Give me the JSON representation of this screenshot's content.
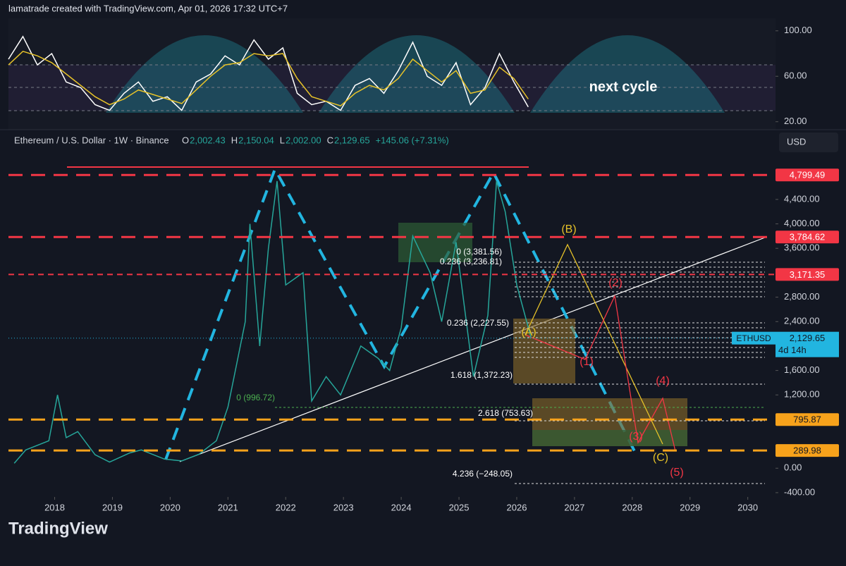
{
  "header": {
    "credit": "lamatrade created with TradingView.com, Apr 01, 2026 17:32 UTC+7",
    "brand": "TradingView"
  },
  "chart_data": [
    {
      "type": "line",
      "title": "Ethereum / U.S. Dollar · 1W · Binance",
      "ohlc": [
        {
          "label": "O",
          "value": "2,002.43"
        },
        {
          "label": "H",
          "value": "2,150.04"
        },
        {
          "label": "L",
          "value": "2,002.00"
        },
        {
          "label": "C",
          "value": "2,129.65"
        }
      ],
      "change": "+145.06 (+7.31%)",
      "currency": "USD",
      "x": [
        2017.3,
        2017.5,
        2017.9,
        2018.05,
        2018.2,
        2018.4,
        2018.7,
        2018.95,
        2019.3,
        2019.5,
        2019.9,
        2020.2,
        2020.5,
        2020.8,
        2021.0,
        2021.3,
        2021.38,
        2021.55,
        2021.7,
        2021.85,
        2022.0,
        2022.3,
        2022.45,
        2022.7,
        2022.95,
        2023.3,
        2023.6,
        2023.8,
        2024.0,
        2024.2,
        2024.5,
        2024.7,
        2024.95,
        2025.25,
        2025.5,
        2025.65,
        2025.8,
        2026.0,
        2026.25
      ],
      "series": [
        {
          "color": "#26a69a",
          "values": [
            80,
            300,
            450,
            1200,
            500,
            600,
            220,
            100,
            250,
            300,
            150,
            120,
            230,
            450,
            1000,
            2400,
            4000,
            2000,
            3600,
            4700,
            3000,
            3200,
            1100,
            1500,
            1200,
            2000,
            1800,
            1600,
            2300,
            3800,
            3200,
            2400,
            3700,
            1500,
            2500,
            4700,
            4200,
            3000,
            2129.65
          ]
        }
      ],
      "xlim": [
        2017.2,
        2030.48
      ],
      "xticks": [
        2018,
        2019,
        2020,
        2021,
        2022,
        2023,
        2024,
        2025,
        2026,
        2027,
        2028,
        2029,
        2030
      ],
      "ylim": [
        -470,
        5530
      ],
      "yticks": [
        {
          "value": 4400,
          "label": "4,400.00"
        },
        {
          "value": 4000,
          "label": "4,000.00"
        },
        {
          "value": 3600,
          "label": "3,600.00"
        },
        {
          "value": 2800,
          "label": "2,800.00"
        },
        {
          "value": 2400,
          "label": "2,400.00"
        },
        {
          "value": 1600,
          "label": "1,600.00"
        },
        {
          "value": 1200,
          "label": "1,200.00"
        },
        {
          "value": 0,
          "label": "0.00"
        },
        {
          "value": -400,
          "label": "-400.00"
        }
      ],
      "levels": [
        {
          "value": 4799.49,
          "label": "4,799.49",
          "color": "#f23645"
        },
        {
          "value": 3784.62,
          "label": "3,784.62",
          "color": "#f23645"
        },
        {
          "value": 3171.35,
          "label": "3,171.35",
          "color": "#f23645"
        },
        {
          "value": 795.87,
          "label": "795.87",
          "color": "#f7a21b"
        },
        {
          "value": 289.98,
          "label": "289.98",
          "color": "#f7a21b"
        }
      ],
      "last": {
        "symbol": "ETHUSD",
        "value": 2129.65,
        "label": "2,129.65",
        "countdown": "4d 14h"
      },
      "fib_labels": [
        "0 (3,381.56)",
        "0.236 (3,236.81)",
        "0.236 (2,227.55)",
        "1.618 (1,372.23)",
        "0 (996.72)",
        "2.618 (753.63)",
        "4.236 (−248.05)"
      ],
      "waves": [
        "(A)",
        "(B)",
        "(C)",
        "(1)",
        "(2)",
        "(3)",
        "(4)",
        "(5)"
      ]
    },
    {
      "type": "line",
      "annotation": "next cycle",
      "x": [
        2017.2,
        2017.45,
        2017.7,
        2017.95,
        2018.2,
        2018.45,
        2018.7,
        2018.95,
        2019.2,
        2019.45,
        2019.7,
        2019.95,
        2020.2,
        2020.45,
        2020.7,
        2020.95,
        2021.2,
        2021.45,
        2021.7,
        2021.95,
        2022.2,
        2022.45,
        2022.7,
        2022.95,
        2023.2,
        2023.45,
        2023.7,
        2023.95,
        2024.2,
        2024.45,
        2024.7,
        2024.95,
        2025.2,
        2025.45,
        2025.7,
        2025.95,
        2026.2
      ],
      "series": [
        {
          "color": "#ffffff",
          "values": [
            75,
            95,
            70,
            80,
            55,
            50,
            35,
            30,
            45,
            55,
            38,
            42,
            30,
            55,
            62,
            78,
            70,
            92,
            75,
            85,
            45,
            35,
            38,
            30,
            52,
            58,
            45,
            65,
            90,
            60,
            52,
            72,
            35,
            50,
            80,
            55,
            33
          ]
        },
        {
          "color": "#e6c229",
          "values": [
            70,
            82,
            78,
            72,
            62,
            52,
            42,
            35,
            40,
            48,
            44,
            40,
            36,
            48,
            60,
            70,
            72,
            80,
            78,
            80,
            58,
            42,
            38,
            34,
            45,
            52,
            48,
            58,
            75,
            65,
            55,
            65,
            45,
            48,
            68,
            58,
            40
          ]
        }
      ],
      "xlim": [
        2017.2,
        2030.48
      ],
      "ylim": [
        13,
        111
      ],
      "yticks": [
        {
          "value": 100,
          "label": "100.00"
        },
        {
          "value": 60,
          "label": "60.00"
        },
        {
          "value": 20,
          "label": "20.00"
        }
      ]
    }
  ]
}
